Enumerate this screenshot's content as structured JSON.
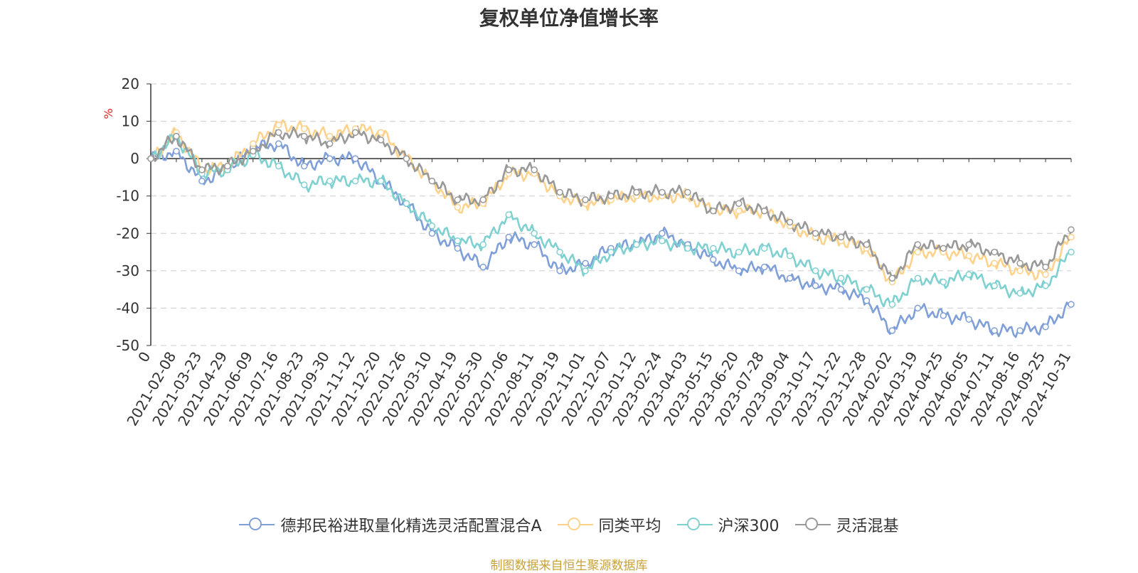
{
  "chart_data": {
    "type": "line",
    "title": "复权单位净值增长率",
    "ylabel": "%",
    "ylim": [
      -50,
      20
    ],
    "yticks": [
      20,
      10,
      0,
      -10,
      -20,
      -30,
      -40,
      -50
    ],
    "grid": true,
    "legend_position": "bottom",
    "x": [
      "0",
      "2021-02-08",
      "2021-03-23",
      "2021-04-29",
      "2021-06-09",
      "2021-07-16",
      "2021-08-23",
      "2021-09-30",
      "2021-11-12",
      "2021-12-20",
      "2022-01-26",
      "2022-03-10",
      "2022-04-19",
      "2022-05-30",
      "2022-07-06",
      "2022-08-11",
      "2022-09-19",
      "2022-11-01",
      "2022-12-07",
      "2023-01-12",
      "2023-02-24",
      "2023-04-03",
      "2023-05-15",
      "2023-06-20",
      "2023-07-28",
      "2023-09-04",
      "2023-10-17",
      "2023-11-22",
      "2023-12-28",
      "2024-02-02",
      "2024-03-19",
      "2024-04-25",
      "2024-06-05",
      "2024-07-11",
      "2024-08-16",
      "2024-09-25",
      "2024-10-31"
    ],
    "series": [
      {
        "name": "德邦民裕进取量化精选灵活配置混合A",
        "color": "#7f9fd9",
        "values": [
          0,
          2,
          -6,
          -3,
          3,
          4,
          -2,
          0,
          0,
          -6,
          -12,
          -20,
          -24,
          -29,
          -21,
          -23,
          -30,
          -28,
          -24,
          -23,
          -20,
          -23,
          -27,
          -30,
          -29,
          -32,
          -34,
          -35,
          -38,
          -46,
          -40,
          -42,
          -43,
          -46,
          -46,
          -45,
          -39
        ]
      },
      {
        "name": "同类平均",
        "color": "#fdd28b",
        "values": [
          0,
          7,
          -3,
          -2,
          4,
          9,
          8,
          6,
          8,
          7,
          0,
          -6,
          -13,
          -12,
          -4,
          -4,
          -10,
          -12,
          -11,
          -10,
          -10,
          -10,
          -14,
          -14,
          -14,
          -18,
          -21,
          -22,
          -24,
          -33,
          -25,
          -25,
          -26,
          -28,
          -30,
          -31,
          -21
        ]
      },
      {
        "name": "沪深300",
        "color": "#7fd1d1",
        "values": [
          0,
          6,
          -4,
          -3,
          1,
          -2,
          -7,
          -6,
          -6,
          -6,
          -12,
          -18,
          -22,
          -23,
          -15,
          -20,
          -25,
          -30,
          -25,
          -23,
          -22,
          -24,
          -24,
          -25,
          -24,
          -26,
          -30,
          -32,
          -35,
          -39,
          -32,
          -33,
          -31,
          -34,
          -36,
          -34,
          -25
        ]
      },
      {
        "name": "灵活混基",
        "color": "#999999",
        "values": [
          0,
          6,
          -3,
          -2,
          2,
          7,
          6,
          4,
          7,
          5,
          0,
          -6,
          -11,
          -11,
          -3,
          -3,
          -9,
          -11,
          -10,
          -9,
          -9,
          -9,
          -14,
          -12,
          -14,
          -17,
          -20,
          -21,
          -23,
          -32,
          -23,
          -24,
          -23,
          -25,
          -28,
          -29,
          -19
        ]
      }
    ]
  },
  "source_note": "制图数据来自恒生聚源数据库"
}
